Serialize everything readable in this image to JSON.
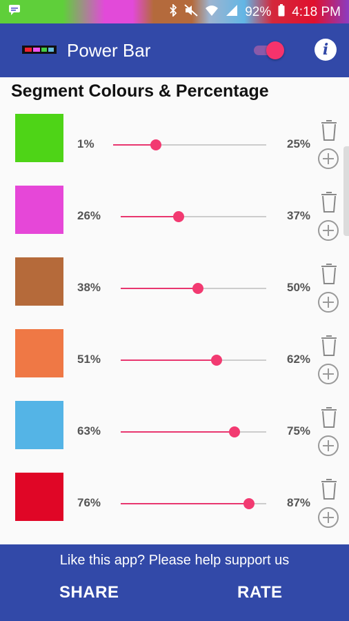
{
  "status_bar": {
    "battery": "92%",
    "time": "4:18 PM"
  },
  "app_bar": {
    "title": "Power Bar",
    "toggle_on": true
  },
  "heading": "Segment Colours & Percentage",
  "segments": [
    {
      "color": "#4ed417",
      "start": "1%",
      "end": "25%",
      "value": 0.28
    },
    {
      "color": "#e647d8",
      "start": "26%",
      "end": "37%",
      "value": 0.4
    },
    {
      "color": "#b56a3a",
      "start": "38%",
      "end": "50%",
      "value": 0.53
    },
    {
      "color": "#ef7845",
      "start": "51%",
      "end": "62%",
      "value": 0.66
    },
    {
      "color": "#54b4e6",
      "start": "63%",
      "end": "75%",
      "value": 0.78
    },
    {
      "color": "#e00626",
      "start": "76%",
      "end": "87%",
      "value": 0.88
    }
  ],
  "footer": {
    "message": "Like this app? Please help support us",
    "share_label": "SHARE",
    "rate_label": "RATE"
  },
  "colors": {
    "primary": "#3249a8",
    "accent": "#f23a71"
  }
}
